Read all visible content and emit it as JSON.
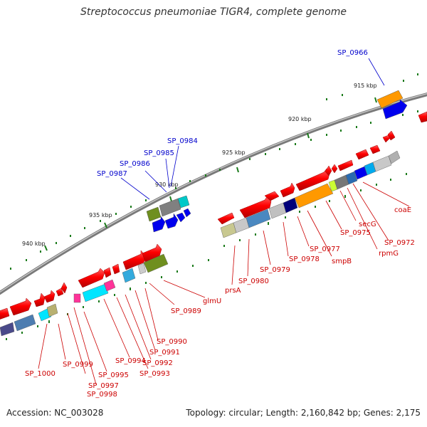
{
  "title": "Streptococcus pneumoniae TIGR4, complete genome",
  "footer": {
    "accession": "Accession: NC_003028",
    "stats": "Topology: circular; Length: 2,160,842 bp; Genes: 2,175"
  },
  "kbp_labels": [
    "915 kbp",
    "920 kbp",
    "925 kbp",
    "930 kbp",
    "935 kbp",
    "940 kbp"
  ],
  "gene_labels_red": [
    "SP_1000",
    "SP_0999",
    "SP_0997",
    "SP_0998",
    "SP_0995",
    "SP_0994",
    "SP_0993",
    "SP_0992",
    "SP_0991",
    "SP_0990",
    "SP_0989",
    "glmU",
    "prsA",
    "SP_0980",
    "SP_0979",
    "SP_0978",
    "SP_0977",
    "smpB",
    "SP_0975",
    "secG",
    "rpmG",
    "SP_0972",
    "coaE"
  ],
  "gene_labels_blue": [
    "SP_0966",
    "SP_0984",
    "SP_0985",
    "SP_0986",
    "SP_0987"
  ],
  "colors": {
    "forward_gene": "#ff0000",
    "backbone": "#888888",
    "tick": "#1a7a1a",
    "label_red": "#cc0000",
    "label_blue": "#0000cc"
  }
}
